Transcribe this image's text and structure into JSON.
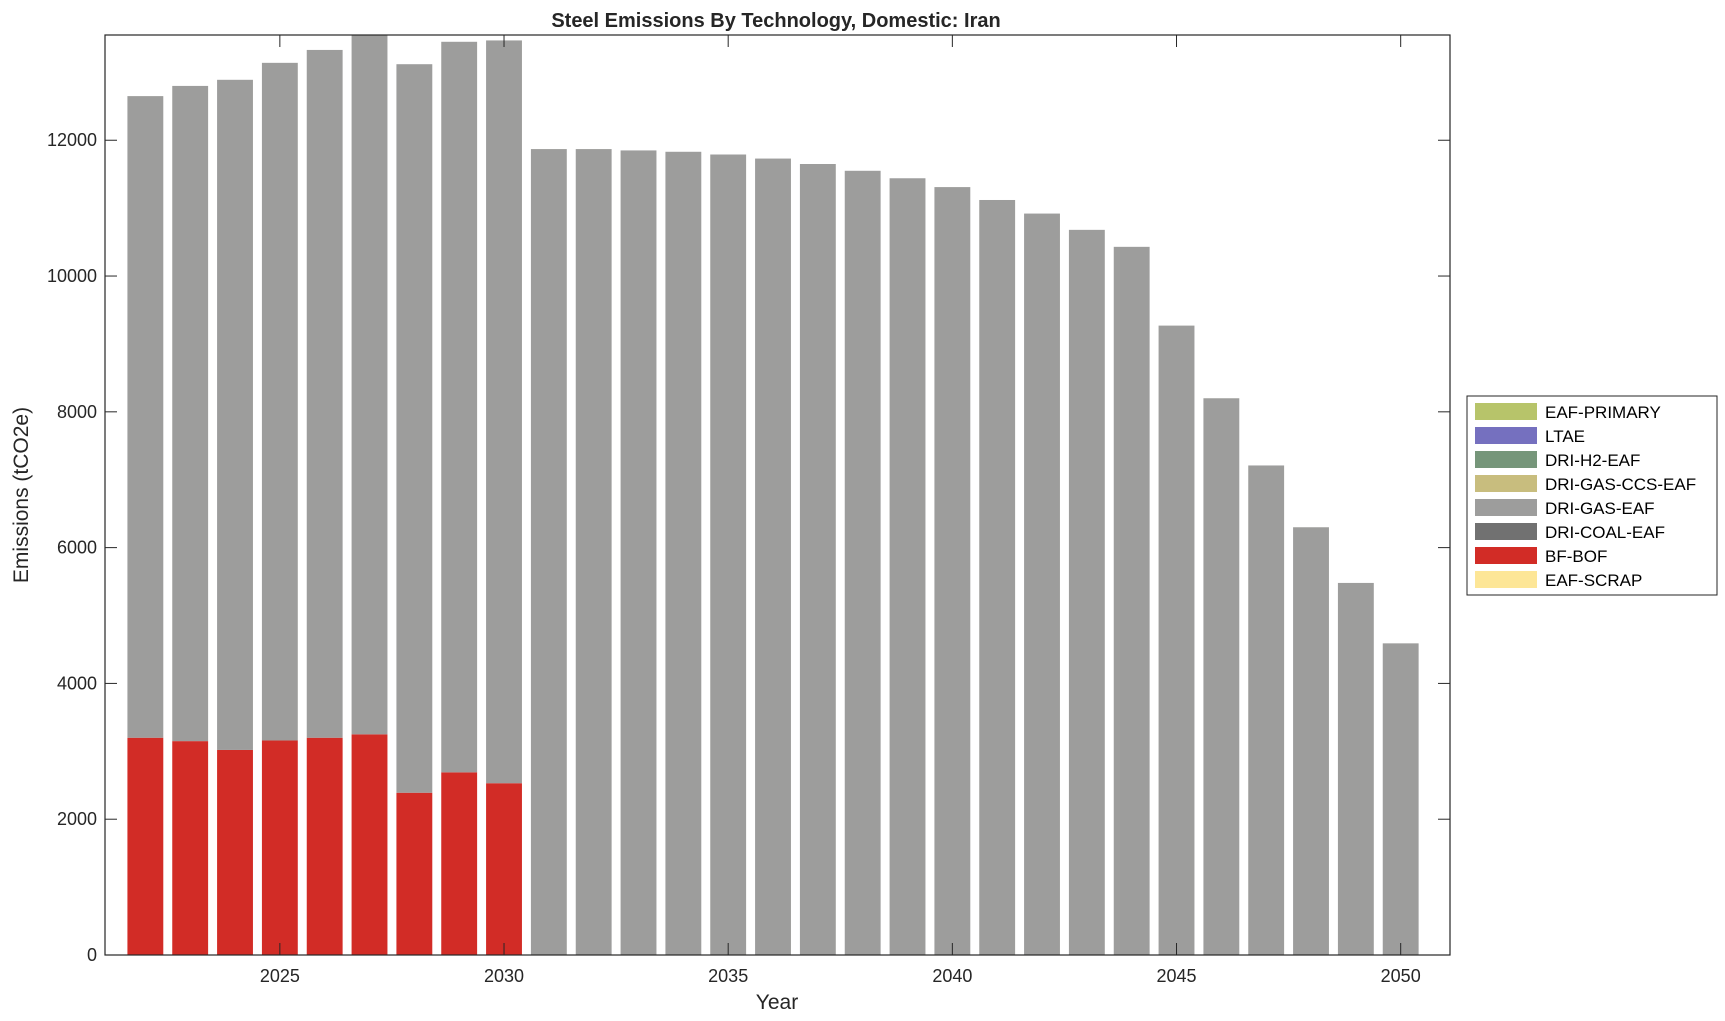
{
  "chart_data": {
    "type": "bar",
    "stacked": true,
    "title": "Steel Emissions By Technology, Domestic: Iran",
    "xlabel": "Year",
    "ylabel": "Emissions (tCO2e)",
    "x": [
      2022,
      2023,
      2024,
      2025,
      2026,
      2027,
      2028,
      2029,
      2030,
      2031,
      2032,
      2033,
      2034,
      2035,
      2036,
      2037,
      2038,
      2039,
      2040,
      2041,
      2042,
      2043,
      2044,
      2045,
      2046,
      2047,
      2048,
      2049,
      2050
    ],
    "xlim": [
      2021.1,
      2051.1
    ],
    "ylim": [
      0,
      13550
    ],
    "x_ticks": [
      2025,
      2030,
      2035,
      2040,
      2045,
      2050
    ],
    "y_ticks": [
      0,
      2000,
      4000,
      6000,
      8000,
      10000,
      12000
    ],
    "grid": false,
    "legend_position": "right",
    "series": [
      {
        "name": "EAF-PRIMARY",
        "color": "#b7c46a",
        "values": [
          0,
          0,
          0,
          0,
          0,
          0,
          0,
          0,
          0,
          0,
          0,
          0,
          0,
          0,
          0,
          0,
          0,
          0,
          0,
          0,
          0,
          0,
          0,
          0,
          0,
          0,
          0,
          0,
          0
        ]
      },
      {
        "name": "LTAE",
        "color": "#7570bf",
        "values": [
          0,
          0,
          0,
          0,
          0,
          0,
          0,
          0,
          0,
          0,
          0,
          0,
          0,
          0,
          0,
          0,
          0,
          0,
          0,
          0,
          0,
          0,
          0,
          0,
          0,
          0,
          0,
          0,
          0
        ]
      },
      {
        "name": "DRI-H2-EAF",
        "color": "#76967a",
        "values": [
          0,
          0,
          0,
          0,
          0,
          0,
          0,
          0,
          0,
          0,
          0,
          0,
          0,
          0,
          0,
          0,
          0,
          0,
          0,
          0,
          0,
          0,
          0,
          0,
          0,
          0,
          0,
          0,
          0
        ]
      },
      {
        "name": "DRI-GAS-CCS-EAF",
        "color": "#c8bd7e",
        "values": [
          0,
          0,
          0,
          0,
          0,
          0,
          0,
          0,
          0,
          0,
          0,
          0,
          0,
          0,
          0,
          0,
          0,
          0,
          0,
          0,
          0,
          0,
          0,
          0,
          0,
          0,
          0,
          0,
          0
        ]
      },
      {
        "name": "DRI-GAS-EAF",
        "color": "#9d9d9c",
        "values": [
          9450,
          9650,
          9870,
          9980,
          10130,
          10300,
          10730,
          10760,
          10940,
          11870,
          11870,
          11850,
          11830,
          11790,
          11730,
          11650,
          11550,
          11440,
          11310,
          11120,
          10920,
          10680,
          10430,
          9270,
          8200,
          7210,
          6300,
          5480,
          4590
        ]
      },
      {
        "name": "DRI-COAL-EAF",
        "color": "#717171",
        "values": [
          0,
          0,
          0,
          0,
          0,
          0,
          0,
          0,
          0,
          0,
          0,
          0,
          0,
          0,
          0,
          0,
          0,
          0,
          0,
          0,
          0,
          0,
          0,
          0,
          0,
          0,
          0,
          0,
          0
        ]
      },
      {
        "name": "BF-BOF",
        "color": "#d22c26",
        "values": [
          3200,
          3150,
          3020,
          3160,
          3200,
          3250,
          2390,
          2690,
          2530,
          0,
          0,
          0,
          0,
          0,
          0,
          0,
          0,
          0,
          0,
          0,
          0,
          0,
          0,
          0,
          0,
          0,
          0,
          0,
          0
        ]
      },
      {
        "name": "EAF-SCRAP",
        "color": "#fde697",
        "values": [
          0,
          0,
          0,
          0,
          0,
          0,
          0,
          0,
          0,
          0,
          0,
          0,
          0,
          0,
          0,
          0,
          0,
          0,
          0,
          0,
          0,
          0,
          0,
          0,
          0,
          0,
          0,
          0,
          0
        ]
      }
    ],
    "stack_order": [
      "BF-BOF",
      "DRI-GAS-EAF"
    ]
  }
}
